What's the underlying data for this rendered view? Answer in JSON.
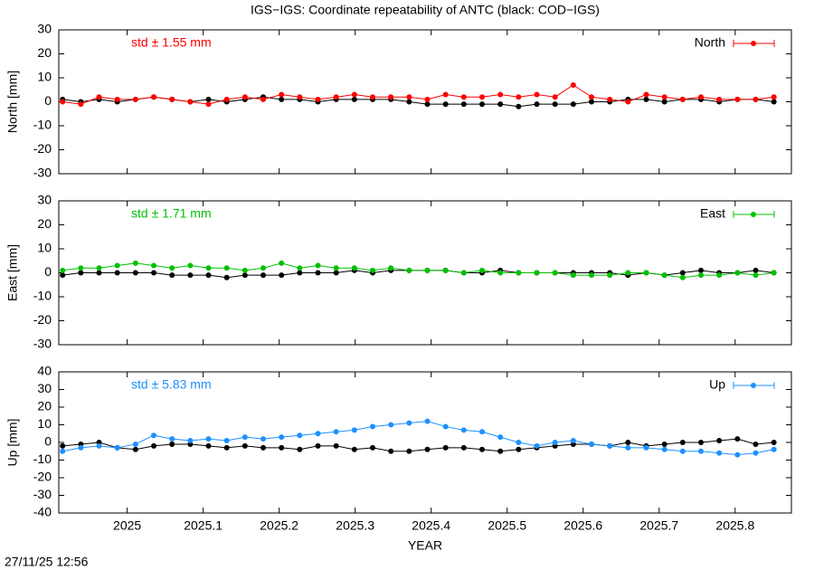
{
  "title": "IGS−IGS: Coordinate repeatability of ANTC (black: COD−IGS)",
  "footer": "27/11/25 12:56",
  "chart_data": [
    {
      "type": "line",
      "ylabel": "North [mm]",
      "annotation": "std ± 1.55 mm",
      "legend": "top-right",
      "xlim": [
        2024.91,
        2025.874
      ],
      "xticks": [
        2025,
        2025.1,
        2025.2,
        2025.3,
        2025.4,
        2025.5,
        2025.6,
        2025.7,
        2025.8
      ],
      "ylim": [
        -30,
        30
      ],
      "yticks": [
        -30,
        -20,
        -10,
        0,
        10,
        20,
        30
      ],
      "x": [
        2024.915,
        2024.939,
        2024.963,
        2024.987,
        2025.011,
        2025.035,
        2025.059,
        2025.083,
        2025.107,
        2025.131,
        2025.155,
        2025.179,
        2025.203,
        2025.227,
        2025.251,
        2025.275,
        2025.299,
        2025.323,
        2025.347,
        2025.371,
        2025.395,
        2025.419,
        2025.443,
        2025.467,
        2025.491,
        2025.515,
        2025.539,
        2025.563,
        2025.587,
        2025.611,
        2025.635,
        2025.659,
        2025.683,
        2025.707,
        2025.731,
        2025.755,
        2025.779,
        2025.803,
        2025.827,
        2025.851
      ],
      "series": [
        {
          "name": "North",
          "color": "#ff0000",
          "values": [
            0,
            -1,
            2,
            1,
            1,
            2,
            1,
            0,
            -1,
            1,
            2,
            1,
            3,
            2,
            1,
            2,
            3,
            2,
            2,
            2,
            1,
            3,
            2,
            2,
            3,
            2,
            3,
            2,
            7,
            2,
            1,
            0,
            3,
            2,
            1,
            2,
            1,
            1,
            1,
            2
          ]
        },
        {
          "color": "#000000",
          "values": [
            1,
            0,
            1,
            0,
            1,
            2,
            1,
            0,
            1,
            0,
            1,
            2,
            1,
            1,
            0,
            1,
            1,
            1,
            1,
            0,
            -1,
            -1,
            -1,
            -1,
            -1,
            -2,
            -1,
            -1,
            -1,
            0,
            0,
            1,
            1,
            0,
            1,
            1,
            0,
            1,
            1,
            0
          ]
        }
      ]
    },
    {
      "type": "line",
      "ylabel": "East [mm]",
      "annotation": "std ± 1.71 mm",
      "legend": "top-right",
      "xlim": [
        2024.91,
        2025.874
      ],
      "xticks": [
        2025,
        2025.1,
        2025.2,
        2025.3,
        2025.4,
        2025.5,
        2025.6,
        2025.7,
        2025.8
      ],
      "ylim": [
        -30,
        30
      ],
      "yticks": [
        -30,
        -20,
        -10,
        0,
        10,
        20,
        30
      ],
      "x": [
        2024.915,
        2024.939,
        2024.963,
        2024.987,
        2025.011,
        2025.035,
        2025.059,
        2025.083,
        2025.107,
        2025.131,
        2025.155,
        2025.179,
        2025.203,
        2025.227,
        2025.251,
        2025.275,
        2025.299,
        2025.323,
        2025.347,
        2025.371,
        2025.395,
        2025.419,
        2025.443,
        2025.467,
        2025.491,
        2025.515,
        2025.539,
        2025.563,
        2025.587,
        2025.611,
        2025.635,
        2025.659,
        2025.683,
        2025.707,
        2025.731,
        2025.755,
        2025.779,
        2025.803,
        2025.827,
        2025.851
      ],
      "series": [
        {
          "name": "East",
          "color": "#00c000",
          "values": [
            1,
            2,
            2,
            3,
            4,
            3,
            2,
            3,
            2,
            2,
            1,
            2,
            4,
            2,
            3,
            2,
            2,
            1,
            2,
            1,
            1,
            1,
            0,
            1,
            0,
            0,
            0,
            0,
            -1,
            -1,
            -1,
            0,
            0,
            -1,
            -2,
            -1,
            -1,
            0,
            -1,
            0
          ]
        },
        {
          "color": "#000000",
          "values": [
            -1,
            0,
            0,
            0,
            0,
            0,
            -1,
            -1,
            -1,
            -2,
            -1,
            -1,
            -1,
            0,
            0,
            0,
            1,
            0,
            1,
            1,
            1,
            1,
            0,
            0,
            1,
            0,
            0,
            0,
            0,
            0,
            0,
            -1,
            0,
            -1,
            0,
            1,
            0,
            0,
            1,
            0
          ]
        }
      ]
    },
    {
      "type": "line",
      "ylabel": "Up [mm]",
      "xlabel": "YEAR",
      "annotation": "std ± 5.83 mm",
      "legend": "top-right",
      "xlim": [
        2024.91,
        2025.874
      ],
      "xticks": [
        2025,
        2025.1,
        2025.2,
        2025.3,
        2025.4,
        2025.5,
        2025.6,
        2025.7,
        2025.8
      ],
      "ylim": [
        -40,
        40
      ],
      "yticks": [
        -40,
        -30,
        -20,
        -10,
        0,
        10,
        20,
        30,
        40
      ],
      "x": [
        2024.915,
        2024.939,
        2024.963,
        2024.987,
        2025.011,
        2025.035,
        2025.059,
        2025.083,
        2025.107,
        2025.131,
        2025.155,
        2025.179,
        2025.203,
        2025.227,
        2025.251,
        2025.275,
        2025.299,
        2025.323,
        2025.347,
        2025.371,
        2025.395,
        2025.419,
        2025.443,
        2025.467,
        2025.491,
        2025.515,
        2025.539,
        2025.563,
        2025.587,
        2025.611,
        2025.635,
        2025.659,
        2025.683,
        2025.707,
        2025.731,
        2025.755,
        2025.779,
        2025.803,
        2025.827,
        2025.851
      ],
      "series": [
        {
          "name": "Up",
          "color": "#1e90ff",
          "values": [
            -5,
            -3,
            -2,
            -3,
            -1,
            4,
            2,
            1,
            2,
            1,
            3,
            2,
            3,
            4,
            5,
            6,
            7,
            9,
            10,
            11,
            12,
            9,
            7,
            6,
            3,
            0,
            -2,
            0,
            1,
            -1,
            -2,
            -3,
            -3,
            -4,
            -5,
            -5,
            -6,
            -7,
            -6,
            -4
          ]
        },
        {
          "color": "#000000",
          "values": [
            -2,
            -1,
            0,
            -3,
            -4,
            -2,
            -1,
            -1,
            -2,
            -3,
            -2,
            -3,
            -3,
            -4,
            -2,
            -2,
            -4,
            -3,
            -5,
            -5,
            -4,
            -3,
            -3,
            -4,
            -5,
            -4,
            -3,
            -2,
            -1,
            -1,
            -2,
            0,
            -2,
            -1,
            0,
            0,
            1,
            2,
            -1,
            0
          ]
        }
      ]
    }
  ]
}
